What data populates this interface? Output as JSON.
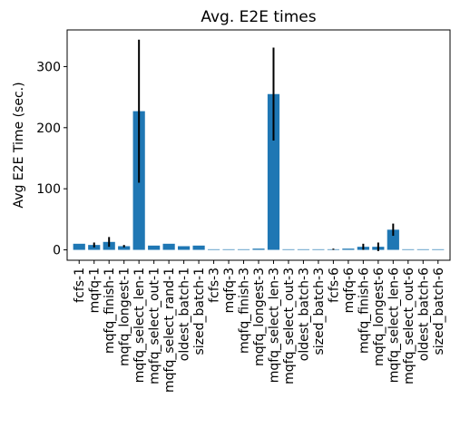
{
  "chart_data": {
    "type": "bar",
    "title": "Avg. E2E times",
    "xlabel": "",
    "ylabel": "Avg E2E Time (sec.)",
    "ylim": [
      -17,
      360
    ],
    "yticks": [
      0,
      100,
      200,
      300
    ],
    "grid": false,
    "legend": "none",
    "bar_color": "#1f77b4",
    "error_color": "#000000",
    "categories": [
      "fcfs-1",
      "mqfq-1",
      "mqfq_finish-1",
      "mqfq_longest-1",
      "mqfq_select_len-1",
      "mqfq_select_out-1",
      "mqfq_select_rand-1",
      "oldest_batch-1",
      "sized_batch-1",
      "fcfs-3",
      "mqfq-3",
      "mqfq_finish-3",
      "mqfq_longest-3",
      "mqfq_select_len-3",
      "mqfq_select_out-3",
      "oldest_batch-3",
      "sized_batch-3",
      "fcfs-6",
      "mqfq-6",
      "mqfq_finish-6",
      "mqfq_longest-6",
      "mqfq_select_len-6",
      "mqfq_select_out-6",
      "oldest_batch-6",
      "sized_batch-6"
    ],
    "values": [
      10,
      8,
      13,
      6,
      227,
      7,
      10,
      6,
      7,
      1,
      1,
      1,
      2,
      255,
      1,
      1,
      1,
      1,
      2,
      5,
      5,
      33,
      1,
      1,
      1
    ],
    "errors": [
      0,
      4,
      8,
      2,
      117,
      0,
      0,
      0,
      0,
      0,
      0,
      0,
      0,
      76,
      0,
      0,
      0,
      1,
      0,
      5,
      7,
      10,
      0,
      0,
      0
    ]
  }
}
